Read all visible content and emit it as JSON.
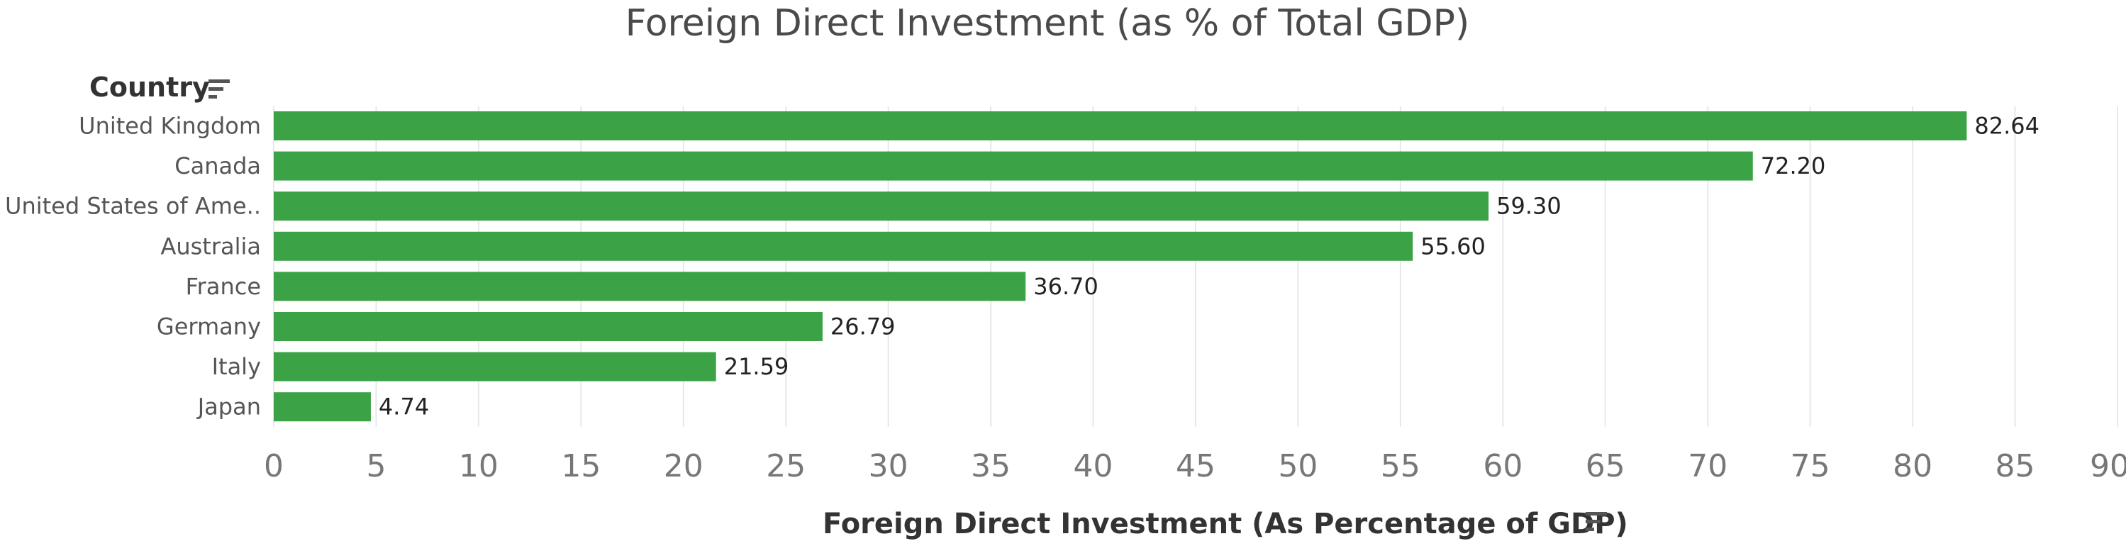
{
  "chart_data": {
    "type": "bar",
    "orientation": "horizontal",
    "title": "Foreign Direct Investment (as % of Total GDP)",
    "ylabel": "Country",
    "xlabel": "Foreign Direct Investment (As Percentage of GDP)",
    "categories": [
      "United Kingdom",
      "Canada",
      "United States of Ame..",
      "Australia",
      "France",
      "Germany",
      "Italy",
      "Japan"
    ],
    "values": [
      82.64,
      72.2,
      59.3,
      55.6,
      36.7,
      26.79,
      21.59,
      4.74
    ],
    "value_labels": [
      "82.64",
      "72.20",
      "59.30",
      "55.60",
      "36.70",
      "26.79",
      "21.59",
      "4.74"
    ],
    "xlim": [
      0,
      90
    ],
    "xticks": [
      "0",
      "5",
      "10",
      "15",
      "20",
      "25",
      "30",
      "35",
      "40",
      "45",
      "50",
      "55",
      "60",
      "65",
      "70",
      "75",
      "80",
      "85",
      "90"
    ],
    "grid": true,
    "bar_color": "#3ba345"
  },
  "icons": {
    "country_sort": "sort-descending-icon",
    "axis_sort": "sort-descending-icon"
  }
}
